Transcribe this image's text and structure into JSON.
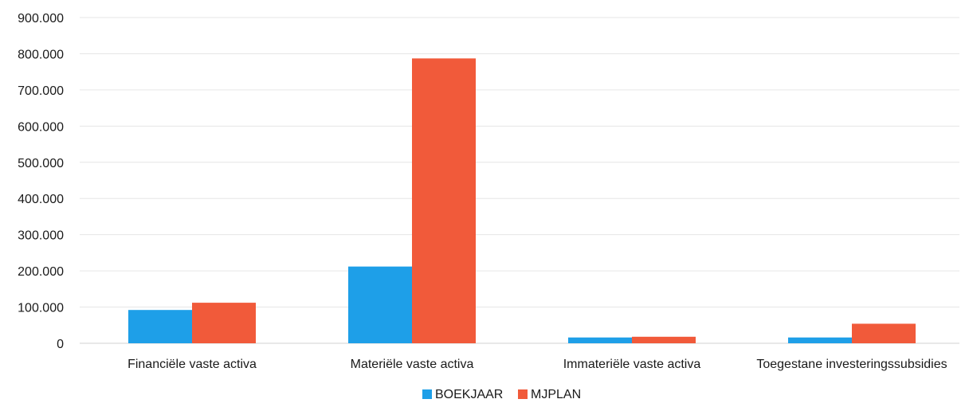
{
  "chart_data": {
    "type": "bar",
    "categories": [
      "Financiële vaste activa",
      "Materiële vaste activa",
      "Immateriële vaste activa",
      "Toegestane investeringssubsidies"
    ],
    "series": [
      {
        "name": "BOEKJAAR",
        "values": [
          92000,
          212000,
          16000,
          16000
        ]
      },
      {
        "name": "MJPLAN",
        "values": [
          112000,
          787000,
          18000,
          54000
        ]
      }
    ],
    "ylim": [
      0,
      900000
    ],
    "yticks": [
      0,
      100000,
      200000,
      300000,
      400000,
      500000,
      600000,
      700000,
      800000,
      900000
    ],
    "ytick_labels": [
      "0",
      "100.000",
      "200.000",
      "300.000",
      "400.000",
      "500.000",
      "600.000",
      "700.000",
      "800.000",
      "900.000"
    ],
    "grid": true,
    "legend_position": "bottom",
    "colors": {
      "BOEKJAAR": "#1e9fe8",
      "MJPLAN": "#f15a3a"
    }
  }
}
